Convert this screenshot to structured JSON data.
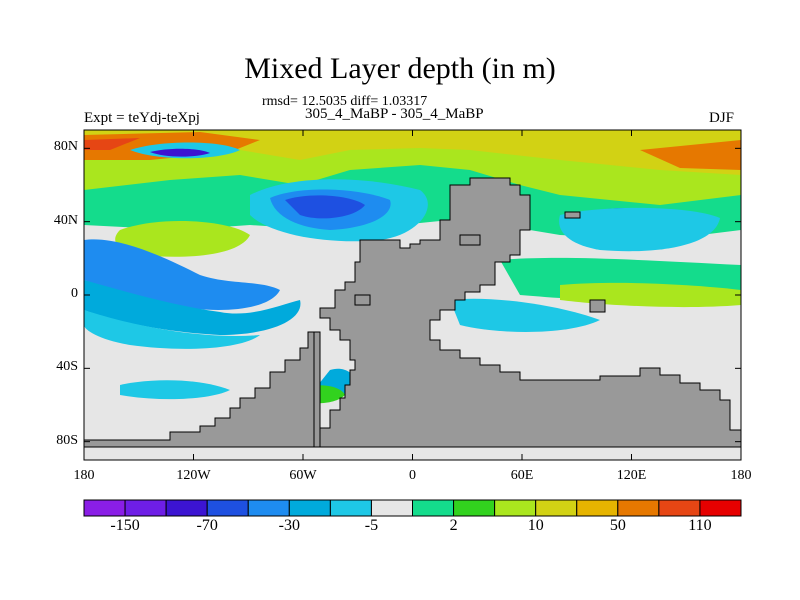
{
  "chart_data": {
    "type": "heatmap",
    "title": "Mixed Layer depth (in m)",
    "stats_line": "rmsd= 12.5035 diff= 1.03317",
    "subtitle": "305_4_MaBP - 305_4_MaBP",
    "left_label": "Expt = teYdj-teXpj",
    "right_label": "DJF",
    "xlim": [
      -180,
      180
    ],
    "ylim": [
      -90,
      90
    ],
    "x_ticks": [
      {
        "value": -180,
        "label": "180"
      },
      {
        "value": -120,
        "label": "120W"
      },
      {
        "value": -60,
        "label": "60W"
      },
      {
        "value": 0,
        "label": "0"
      },
      {
        "value": 60,
        "label": "60E"
      },
      {
        "value": 120,
        "label": "120E"
      },
      {
        "value": 180,
        "label": "180"
      }
    ],
    "y_ticks": [
      {
        "value": 80,
        "label": "80N"
      },
      {
        "value": 40,
        "label": "40N"
      },
      {
        "value": 0,
        "label": "0"
      },
      {
        "value": -40,
        "label": "40S"
      },
      {
        "value": -80,
        "label": "80S"
      }
    ],
    "colorbar": {
      "colors": [
        "#8a1ee6",
        "#6e1ee6",
        "#3c14d2",
        "#1e50e1",
        "#1e8cf0",
        "#00aadc",
        "#1ec8e6",
        "#e6e6e6",
        "#14dc8c",
        "#32d21e",
        "#aae61e",
        "#d2d214",
        "#e6b400",
        "#e67800",
        "#e64614",
        "#e60000"
      ],
      "labels": [
        {
          "boundary": 1,
          "text": "-150"
        },
        {
          "boundary": 3,
          "text": "-70"
        },
        {
          "boundary": 5,
          "text": "-30"
        },
        {
          "boundary": 7,
          "text": "-5"
        },
        {
          "boundary": 9,
          "text": "2"
        },
        {
          "boundary": 11,
          "text": "10"
        },
        {
          "boundary": 13,
          "text": "50"
        },
        {
          "boundary": 15,
          "text": "110"
        }
      ]
    },
    "land_color": "#999999"
  }
}
